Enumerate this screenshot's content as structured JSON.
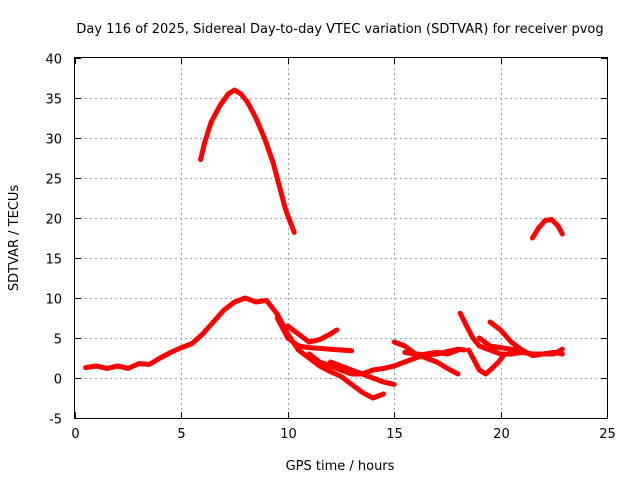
{
  "chart_data": {
    "type": "line",
    "title": "Day 116 of 2025, Sidereal Day-to-day VTEC variation (SDTVAR) for receiver pvog",
    "xlabel": "GPS time / hours",
    "ylabel": "SDTVAR / TECUs",
    "xlim": [
      0,
      25
    ],
    "ylim": [
      -5,
      40
    ],
    "x_ticks": [
      0,
      5,
      10,
      15,
      20,
      25
    ],
    "y_ticks": [
      -5,
      0,
      5,
      10,
      15,
      20,
      25,
      30,
      35,
      40
    ],
    "grid": true,
    "color": "#ff0000",
    "series": [
      {
        "name": "track-high-arc",
        "points": [
          [
            5.9,
            27.3
          ],
          [
            6.1,
            29.5
          ],
          [
            6.4,
            32.0
          ],
          [
            6.8,
            34.0
          ],
          [
            7.2,
            35.5
          ],
          [
            7.5,
            36.0
          ],
          [
            7.8,
            35.5
          ],
          [
            8.1,
            34.5
          ],
          [
            8.5,
            32.5
          ],
          [
            8.9,
            30.0
          ],
          [
            9.3,
            27.0
          ],
          [
            9.6,
            24.0
          ],
          [
            9.9,
            21.0
          ],
          [
            10.3,
            18.2
          ]
        ]
      },
      {
        "name": "track-main",
        "points": [
          [
            0.5,
            1.3
          ],
          [
            1.0,
            1.5
          ],
          [
            1.5,
            1.2
          ],
          [
            2.0,
            1.5
          ],
          [
            2.5,
            1.2
          ],
          [
            3.0,
            1.8
          ],
          [
            3.5,
            1.7
          ],
          [
            4.0,
            2.5
          ],
          [
            4.5,
            3.2
          ],
          [
            5.0,
            3.8
          ],
          [
            5.5,
            4.3
          ],
          [
            6.0,
            5.5
          ],
          [
            6.5,
            7.0
          ],
          [
            7.0,
            8.5
          ],
          [
            7.5,
            9.5
          ],
          [
            8.0,
            10.0
          ],
          [
            8.5,
            9.5
          ],
          [
            9.0,
            9.7
          ],
          [
            9.5,
            8.0
          ],
          [
            10.0,
            5.5
          ],
          [
            10.5,
            3.5
          ],
          [
            11.0,
            2.5
          ],
          [
            11.5,
            1.5
          ],
          [
            12.0,
            0.8
          ],
          [
            12.5,
            0.2
          ],
          [
            13.0,
            -0.8
          ],
          [
            13.5,
            -1.8
          ],
          [
            14.0,
            -2.5
          ],
          [
            14.5,
            -2.0
          ]
        ]
      },
      {
        "name": "track-mid",
        "points": [
          [
            9.5,
            7.5
          ],
          [
            10.0,
            5.0
          ],
          [
            10.5,
            4.0
          ],
          [
            11.0,
            3.8
          ],
          [
            11.5,
            3.7
          ],
          [
            12.0,
            3.6
          ],
          [
            12.5,
            3.5
          ],
          [
            13.0,
            3.4
          ]
        ]
      },
      {
        "name": "track-mid-2",
        "points": [
          [
            10.0,
            6.5
          ],
          [
            10.5,
            5.5
          ],
          [
            11.0,
            4.5
          ],
          [
            11.5,
            4.8
          ],
          [
            12.0,
            5.5
          ],
          [
            12.3,
            6.0
          ]
        ]
      },
      {
        "name": "track-late-1",
        "points": [
          [
            11.0,
            3.0
          ],
          [
            11.5,
            2.0
          ],
          [
            12.0,
            1.5
          ],
          [
            12.5,
            1.0
          ],
          [
            13.0,
            0.5
          ],
          [
            13.5,
            0.5
          ],
          [
            14.0,
            1.0
          ],
          [
            14.5,
            1.2
          ],
          [
            15.0,
            1.5
          ],
          [
            15.5,
            2.0
          ],
          [
            16.0,
            2.5
          ],
          [
            16.5,
            3.0
          ],
          [
            17.0,
            3.2
          ],
          [
            17.5,
            3.0
          ],
          [
            18.0,
            3.5
          ]
        ]
      },
      {
        "name": "track-late-2",
        "points": [
          [
            12.0,
            2.0
          ],
          [
            12.5,
            1.5
          ],
          [
            13.0,
            1.0
          ],
          [
            13.5,
            0.5
          ],
          [
            14.0,
            0.0
          ],
          [
            14.5,
            -0.5
          ],
          [
            15.0,
            -0.8
          ]
        ]
      },
      {
        "name": "track-late-3",
        "points": [
          [
            15.0,
            4.5
          ],
          [
            15.5,
            4.0
          ],
          [
            16.0,
            3.0
          ],
          [
            16.5,
            2.5
          ],
          [
            17.0,
            2.0
          ],
          [
            17.5,
            1.2
          ],
          [
            18.0,
            0.5
          ]
        ]
      },
      {
        "name": "track-late-4",
        "points": [
          [
            15.5,
            3.2
          ],
          [
            16.0,
            3.0
          ],
          [
            16.5,
            2.9
          ],
          [
            17.0,
            3.0
          ],
          [
            17.5,
            3.3
          ],
          [
            18.0,
            3.6
          ],
          [
            18.3,
            3.5
          ]
        ]
      },
      {
        "name": "track-late-5",
        "points": [
          [
            18.1,
            8.1
          ],
          [
            18.4,
            6.5
          ],
          [
            18.7,
            5.0
          ],
          [
            19.0,
            4.0
          ],
          [
            19.5,
            3.5
          ],
          [
            20.0,
            3.0
          ],
          [
            20.5,
            3.0
          ],
          [
            21.0,
            3.2
          ],
          [
            21.5,
            3.0
          ],
          [
            22.0,
            3.0
          ],
          [
            22.5,
            3.2
          ],
          [
            22.9,
            3.0
          ]
        ]
      },
      {
        "name": "track-late-6",
        "points": [
          [
            18.5,
            3.5
          ],
          [
            18.8,
            2.0
          ],
          [
            19.0,
            1.0
          ],
          [
            19.3,
            0.5
          ],
          [
            19.6,
            1.2
          ],
          [
            19.9,
            2.0
          ],
          [
            20.2,
            3.0
          ]
        ]
      },
      {
        "name": "track-late-7",
        "points": [
          [
            19.5,
            7.0
          ],
          [
            20.0,
            6.0
          ],
          [
            20.5,
            4.5
          ],
          [
            21.0,
            3.5
          ],
          [
            21.5,
            2.8
          ],
          [
            22.0,
            3.0
          ],
          [
            22.5,
            3.0
          ],
          [
            22.9,
            3.6
          ]
        ]
      },
      {
        "name": "track-late-8",
        "points": [
          [
            19.0,
            5.0
          ],
          [
            19.5,
            4.0
          ],
          [
            20.0,
            3.8
          ],
          [
            20.5,
            3.6
          ],
          [
            21.0,
            3.5
          ]
        ]
      },
      {
        "name": "track-end-arc",
        "points": [
          [
            21.5,
            17.5
          ],
          [
            21.8,
            18.8
          ],
          [
            22.1,
            19.7
          ],
          [
            22.4,
            19.8
          ],
          [
            22.7,
            19.0
          ],
          [
            22.9,
            18.0
          ]
        ]
      }
    ]
  }
}
